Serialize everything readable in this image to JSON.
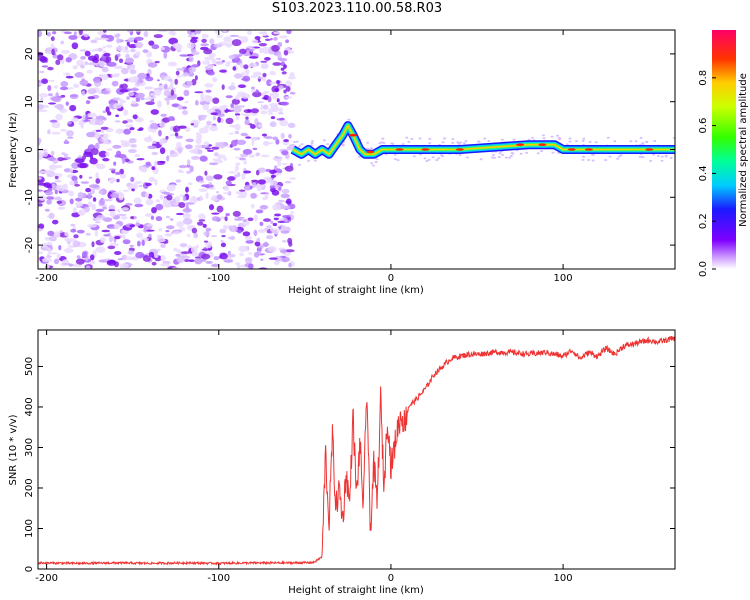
{
  "title": "S103.2023.110.00.58.R03",
  "colors": {
    "snr_line": "#ee3333",
    "background": "#ffffff",
    "axis": "#000000"
  },
  "chart_data": [
    {
      "type": "heatmap",
      "xlabel": "Height of straight line (km)",
      "ylabel": "Frequency (Hz)",
      "xlim": [
        -205,
        165
      ],
      "ylim": [
        -25,
        25
      ],
      "x_ticks": [
        -200,
        -100,
        0,
        100
      ],
      "x_tick_labels": [
        "-200",
        "-100",
        "0",
        "100"
      ],
      "y_ticks": [
        -20,
        -10,
        0,
        10,
        20
      ],
      "y_tick_labels": [
        "-20",
        "-10",
        "0",
        "10",
        "20"
      ],
      "colorbar": {
        "label": "Normalized spectral amplitude",
        "ticks": [
          0.0,
          0.2,
          0.4,
          0.6,
          0.8
        ],
        "tick_labels": [
          "0.0",
          "0.2",
          "0.4",
          "0.6",
          "0.8"
        ],
        "range": [
          0,
          1
        ],
        "colormap": "rainbow (white to purple to red)"
      },
      "noise_region_x": [
        -205,
        -57
      ],
      "signal_ridge": {
        "x": [
          -57,
          -52,
          -48,
          -44,
          -40,
          -36,
          -32,
          -28,
          -25,
          -22,
          -18,
          -15,
          -10,
          -5,
          0,
          10,
          20,
          40,
          60,
          80,
          95,
          100,
          120,
          140,
          165
        ],
        "frequency": [
          0,
          -1,
          0,
          -1,
          0,
          -1,
          1,
          3,
          5,
          3,
          0,
          -1,
          -1,
          0,
          0,
          0,
          0,
          0,
          0.5,
          1,
          1,
          0,
          0,
          0,
          0
        ]
      },
      "grid": false
    },
    {
      "type": "line",
      "xlabel": "Height of straight line (km)",
      "ylabel": "SNR (10 * v/v)",
      "xlim": [
        -205,
        165
      ],
      "ylim": [
        0,
        590
      ],
      "x_ticks": [
        -200,
        -100,
        0,
        100
      ],
      "x_tick_labels": [
        "-200",
        "-100",
        "0",
        "100"
      ],
      "y_ticks": [
        0,
        100,
        200,
        300,
        400,
        500
      ],
      "y_tick_labels": [
        "0",
        "100",
        "200",
        "300",
        "400",
        "500"
      ],
      "series": [
        {
          "x": [
            -205,
            -180,
            -160,
            -140,
            -120,
            -100,
            -80,
            -60,
            -45,
            -40,
            -38,
            -36,
            -34,
            -32,
            -30,
            -28,
            -26,
            -24,
            -22,
            -20,
            -18,
            -16,
            -14,
            -12,
            -10,
            -8,
            -6,
            -4,
            -2,
            0,
            2,
            4,
            6,
            8,
            10,
            15,
            20,
            25,
            30,
            35,
            40,
            45,
            50,
            60,
            70,
            80,
            90,
            95,
            100,
            105,
            110,
            115,
            120,
            125,
            130,
            135,
            140,
            145,
            150,
            155,
            160,
            165
          ],
          "values": [
            15,
            14,
            15,
            14,
            15,
            14,
            15,
            15,
            16,
            30,
            290,
            110,
            330,
            150,
            200,
            120,
            240,
            160,
            380,
            180,
            310,
            150,
            450,
            90,
            260,
            160,
            420,
            200,
            380,
            250,
            300,
            350,
            380,
            360,
            400,
            420,
            445,
            480,
            500,
            520,
            525,
            530,
            530,
            535,
            535,
            530,
            535,
            530,
            525,
            540,
            520,
            535,
            525,
            545,
            530,
            550,
            555,
            560,
            565,
            560,
            565,
            570
          ]
        }
      ],
      "grid": false
    }
  ]
}
